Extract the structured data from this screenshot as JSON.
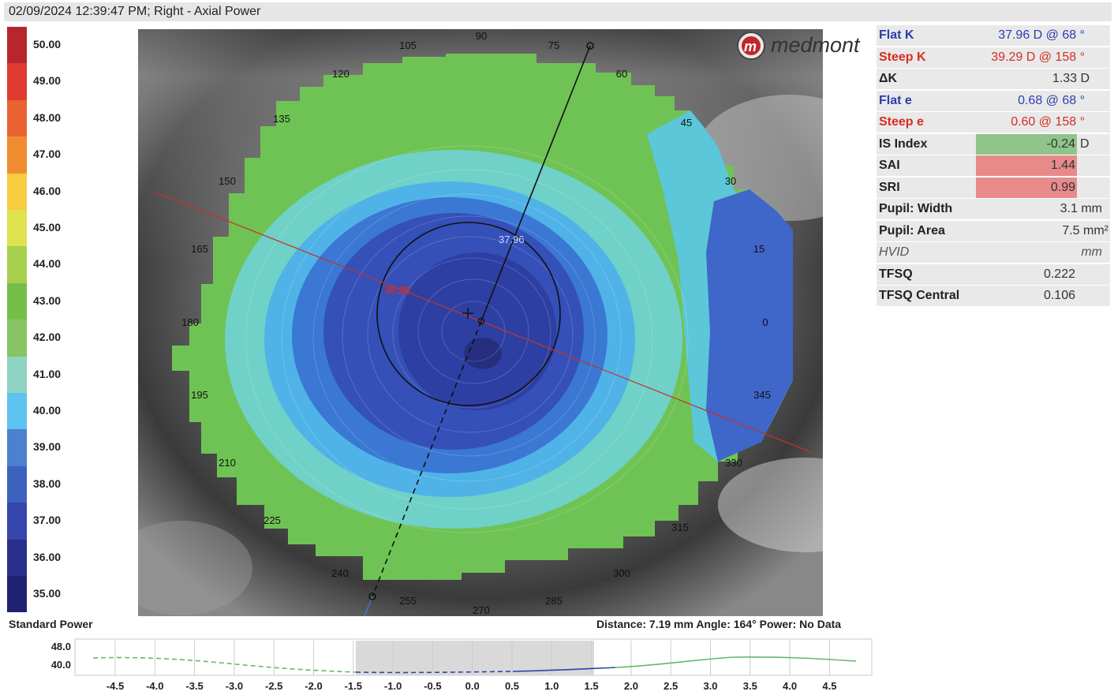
{
  "title": "02/09/2024 12:39:47 PM; Right - Axial Power",
  "brand": "medmont",
  "legend": {
    "items": [
      {
        "label": "50.00",
        "color": "#b8262d"
      },
      {
        "label": "49.00",
        "color": "#e03b2e"
      },
      {
        "label": "48.00",
        "color": "#ea6232"
      },
      {
        "label": "47.00",
        "color": "#f08c30"
      },
      {
        "label": "46.00",
        "color": "#f7cc40"
      },
      {
        "label": "45.00",
        "color": "#dde24e"
      },
      {
        "label": "44.00",
        "color": "#a7d04d"
      },
      {
        "label": "43.00",
        "color": "#76be4a"
      },
      {
        "label": "42.00",
        "color": "#86c464"
      },
      {
        "label": "41.00",
        "color": "#8fd3c2"
      },
      {
        "label": "40.00",
        "color": "#5ec3ee"
      },
      {
        "label": "39.00",
        "color": "#4a82cf"
      },
      {
        "label": "38.00",
        "color": "#3d62bd"
      },
      {
        "label": "37.00",
        "color": "#3546ac"
      },
      {
        "label": "36.00",
        "color": "#2a2f8a"
      },
      {
        "label": "35.00",
        "color": "#1f2270"
      }
    ],
    "footer": "Standard Power"
  },
  "map": {
    "angles": [
      "90",
      "75",
      "60",
      "45",
      "30",
      "15",
      "0",
      "345",
      "330",
      "315",
      "300",
      "285",
      "270",
      "255",
      "240",
      "225",
      "210",
      "195",
      "180",
      "165",
      "150",
      "135",
      "120",
      "105"
    ],
    "flat_k_label": "37.96",
    "steep_k_label": "39.29"
  },
  "stats": {
    "flat_k": {
      "label": "Flat K",
      "value": "37.96 D @  68 °"
    },
    "steep_k": {
      "label": "Steep K",
      "value": "39.29 D @ 158 °"
    },
    "delta_k": {
      "label": "ΔK",
      "value": "1.33 D"
    },
    "flat_e": {
      "label": "Flat e",
      "value": "0.68 @  68 °"
    },
    "steep_e": {
      "label": "Steep e",
      "value": "0.60 @ 158 °"
    },
    "is_index": {
      "label": "IS Index",
      "value": "-0.24",
      "unit": "D"
    },
    "sai": {
      "label": "SAI",
      "value": "1.44"
    },
    "sri": {
      "label": "SRI",
      "value": "0.99"
    },
    "pupil_width": {
      "label": "Pupil: Width",
      "value": "3.1 mm"
    },
    "pupil_area": {
      "label": "Pupil: Area",
      "value": "7.5 mm²"
    },
    "hvid": {
      "label": "HVID",
      "value": "mm"
    },
    "tfsq": {
      "label": "TFSQ",
      "value": "0.222"
    },
    "tfsq_central": {
      "label": "TFSQ Central",
      "value": "0.106"
    }
  },
  "profile": {
    "readout": "Distance: 7.19 mm Angle: 164° Power:  No Data",
    "y_ticks": [
      "48.0",
      "40.0"
    ],
    "x_ticks": [
      "-4.5",
      "-4.0",
      "-3.5",
      "-3.0",
      "-2.5",
      "-2.0",
      "-1.5",
      "-1.0",
      "-0.5",
      "0.0",
      "0.5",
      "1.0",
      "1.5",
      "2.0",
      "2.5",
      "3.0",
      "3.5",
      "4.0",
      "4.5"
    ]
  }
}
